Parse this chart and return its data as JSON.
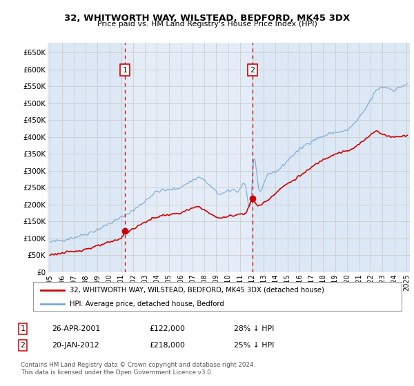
{
  "title": "32, WHITWORTH WAY, WILSTEAD, BEDFORD, MK45 3DX",
  "subtitle": "Price paid vs. HM Land Registry's House Price Index (HPI)",
  "legend_line1": "32, WHITWORTH WAY, WILSTEAD, BEDFORD, MK45 3DX (detached house)",
  "legend_line2": "HPI: Average price, detached house, Bedford",
  "footer": "Contains HM Land Registry data © Crown copyright and database right 2024.\nThis data is licensed under the Open Government Licence v3.0.",
  "sale1_label": "1",
  "sale1_date_str": "26-APR-2001",
  "sale1_price_str": "£122,000",
  "sale1_hpi_str": "28% ↓ HPI",
  "sale1_year": 2001.32,
  "sale1_price": 122000,
  "sale2_label": "2",
  "sale2_date_str": "20-JAN-2012",
  "sale2_price_str": "£218,000",
  "sale2_hpi_str": "25% ↓ HPI",
  "sale2_year": 2012.05,
  "sale2_price": 218000,
  "ylim": [
    0,
    680000
  ],
  "xlim": [
    1994.8,
    2025.3
  ],
  "yticks": [
    0,
    50000,
    100000,
    150000,
    200000,
    250000,
    300000,
    350000,
    400000,
    450000,
    500000,
    550000,
    600000,
    650000
  ],
  "ytick_labels": [
    "£0",
    "£50K",
    "£100K",
    "£150K",
    "£200K",
    "£250K",
    "£300K",
    "£350K",
    "£400K",
    "£450K",
    "£500K",
    "£550K",
    "£600K",
    "£650K"
  ],
  "xticks": [
    1995,
    1996,
    1997,
    1998,
    1999,
    2000,
    2001,
    2002,
    2003,
    2004,
    2005,
    2006,
    2007,
    2008,
    2009,
    2010,
    2011,
    2012,
    2013,
    2014,
    2015,
    2016,
    2017,
    2018,
    2019,
    2020,
    2021,
    2022,
    2023,
    2024,
    2025
  ],
  "hpi_color": "#7aa8d4",
  "price_color": "#cc0000",
  "vline_color": "#cc0000",
  "grid_color": "#cccccc",
  "bg_color": "#dce8f5",
  "plot_bg": "#dce8f5",
  "fig_bg": "#ffffff",
  "shade_bg": "#e8f0f8"
}
